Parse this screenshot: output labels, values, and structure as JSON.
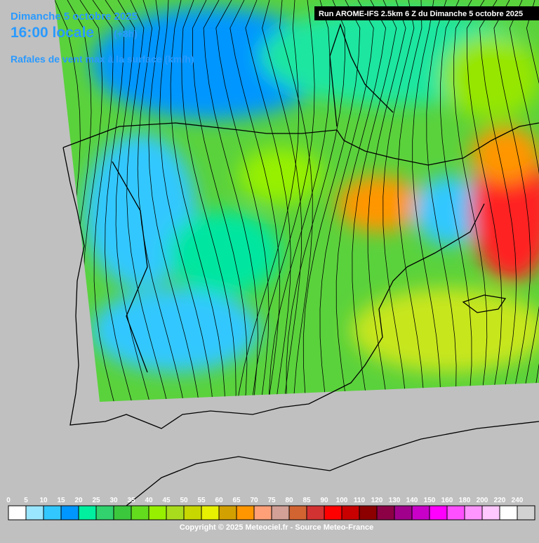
{
  "header": {
    "date": "Dimanche 5 octobre 2025",
    "time": "16:00 locale",
    "offset": "(+8h)",
    "parameter": "Rafales de vent max à la surface (km/h)",
    "run": "Run AROME-IFS 2.5km 6 Z du Dimanche 5 octobre 2025"
  },
  "legend": {
    "items": [
      {
        "label": "0",
        "color": "#ffffff"
      },
      {
        "label": "5",
        "color": "#9be6ff"
      },
      {
        "label": "10",
        "color": "#32c8ff"
      },
      {
        "label": "15",
        "color": "#0096ff"
      },
      {
        "label": "20",
        "color": "#00f0a0"
      },
      {
        "label": "25",
        "color": "#32d26e"
      },
      {
        "label": "30",
        "color": "#3cc83c"
      },
      {
        "label": "35",
        "color": "#64dc1e"
      },
      {
        "label": "40",
        "color": "#96f000"
      },
      {
        "label": "45",
        "color": "#aadc1e"
      },
      {
        "label": "50",
        "color": "#c8d700"
      },
      {
        "label": "55",
        "color": "#e6f000"
      },
      {
        "label": "60",
        "color": "#d2a000"
      },
      {
        "label": "65",
        "color": "#ff9600"
      },
      {
        "label": "70",
        "color": "#ffa078"
      },
      {
        "label": "75",
        "color": "#d2a096"
      },
      {
        "label": "80",
        "color": "#d26432"
      },
      {
        "label": "85",
        "color": "#d23232"
      },
      {
        "label": "90",
        "color": "#ff0000"
      },
      {
        "label": "100",
        "color": "#c80000"
      },
      {
        "label": "110",
        "color": "#8c0000"
      },
      {
        "label": "120",
        "color": "#8c0046"
      },
      {
        "label": "130",
        "color": "#a0008c"
      },
      {
        "label": "140",
        "color": "#c800c8"
      },
      {
        "label": "150",
        "color": "#ff00ff"
      },
      {
        "label": "160",
        "color": "#ff50ff"
      },
      {
        "label": "180",
        "color": "#ff96ff"
      },
      {
        "label": "200",
        "color": "#ffc8ff"
      },
      {
        "label": "220",
        "color": "#ffffff"
      },
      {
        "label": "240",
        "color": "#d2d2d2"
      }
    ]
  },
  "footer": {
    "copyright": "Copyright © 2025 Meteociel.fr - Source Meteo-France"
  }
}
